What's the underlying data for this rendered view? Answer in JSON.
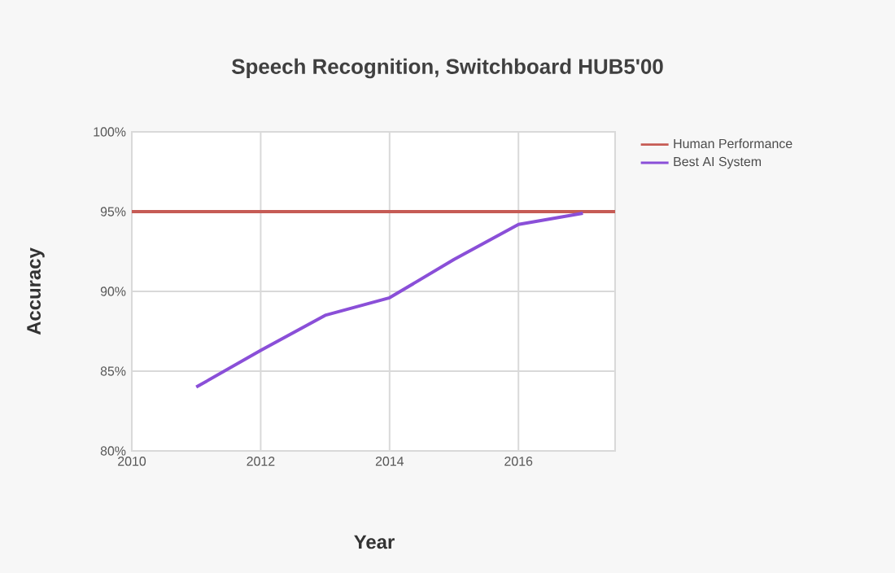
{
  "chart_data": {
    "type": "line",
    "title": "Speech Recognition, Switchboard HUB5'00",
    "xlabel": "Year",
    "ylabel": "Accuracy",
    "series": [
      {
        "name": "Human Performance",
        "color": "#c65b55",
        "x": [
          2010,
          2017.5
        ],
        "values": [
          95,
          95
        ]
      },
      {
        "name": "Best AI System",
        "color": "#8a4fd8",
        "x": [
          2011,
          2012,
          2013,
          2014,
          2015,
          2016,
          2017
        ],
        "values": [
          84,
          86.3,
          88.5,
          89.6,
          92.0,
          94.2,
          94.9
        ]
      }
    ],
    "xlim": [
      2010,
      2017.5
    ],
    "ylim": [
      80,
      100
    ],
    "xticks": [
      2010,
      2012,
      2014,
      2016
    ],
    "yticks": [
      {
        "value": 80,
        "label": "80%"
      },
      {
        "value": 85,
        "label": "85%"
      },
      {
        "value": 90,
        "label": "90%"
      },
      {
        "value": 95,
        "label": "95%"
      },
      {
        "value": 100,
        "label": "100%"
      }
    ],
    "grid": true,
    "legend": "top right",
    "marker": "none"
  }
}
